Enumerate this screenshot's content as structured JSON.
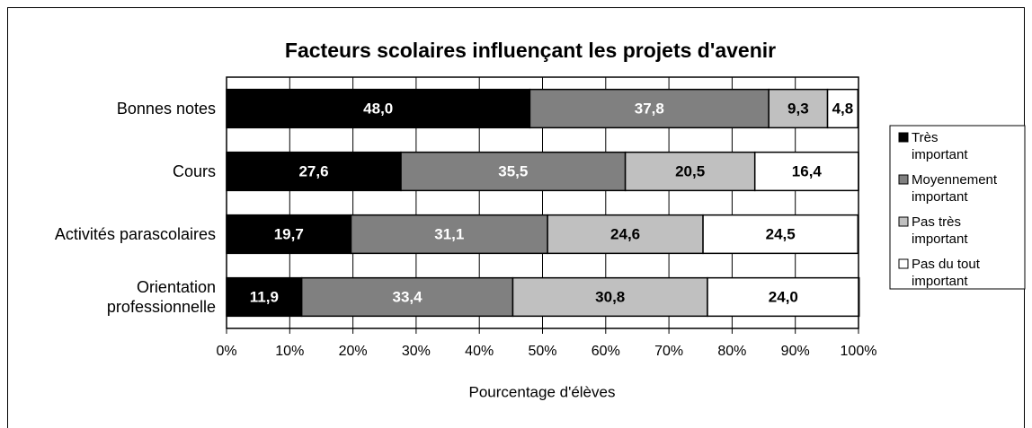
{
  "chart_data": {
    "type": "stacked_bar_horizontal",
    "title": "Facteurs scolaires influençant les projets d'avenir",
    "xlabel": "Pourcentage d'élèves",
    "categories": [
      "Bonnes notes",
      "Cours",
      "Activités parascolaires",
      "Orientation\nprofessionnelle"
    ],
    "series": [
      {
        "name": "Très\nimportant",
        "color": "#000000",
        "label_color": "#ffffff",
        "values": [
          48.0,
          27.6,
          19.7,
          11.9
        ],
        "value_labels": [
          "48,0",
          "27,6",
          "19,7",
          "11,9"
        ]
      },
      {
        "name": "Moyennement\nimportant",
        "color": "#808080",
        "label_color": "#ffffff",
        "values": [
          37.8,
          35.5,
          31.1,
          33.4
        ],
        "value_labels": [
          "37,8",
          "35,5",
          "31,1",
          "33,4"
        ]
      },
      {
        "name": "Pas très\nimportant",
        "color": "#c0c0c0",
        "label_color": "#000000",
        "values": [
          9.3,
          20.5,
          24.6,
          30.8
        ],
        "value_labels": [
          "9,3",
          "20,5",
          "24,6",
          "30,8"
        ]
      },
      {
        "name": "Pas du tout\nimportant",
        "color": "#ffffff",
        "label_color": "#000000",
        "values": [
          4.8,
          16.4,
          24.5,
          24.0
        ],
        "value_labels": [
          "4,8",
          "16,4",
          "24,5",
          "24,0"
        ]
      }
    ],
    "xlim": [
      0,
      100
    ],
    "xticks": [
      {
        "value": 0,
        "label": "0%"
      },
      {
        "value": 10,
        "label": "10%"
      },
      {
        "value": 20,
        "label": "20%"
      },
      {
        "value": 30,
        "label": "30%"
      },
      {
        "value": 40,
        "label": "40%"
      },
      {
        "value": 50,
        "label": "50%"
      },
      {
        "value": 60,
        "label": "60%"
      },
      {
        "value": 70,
        "label": "70%"
      },
      {
        "value": 80,
        "label": "80%"
      },
      {
        "value": 90,
        "label": "90%"
      },
      {
        "value": 100,
        "label": "100%"
      }
    ],
    "grid": true,
    "legend": "right"
  }
}
